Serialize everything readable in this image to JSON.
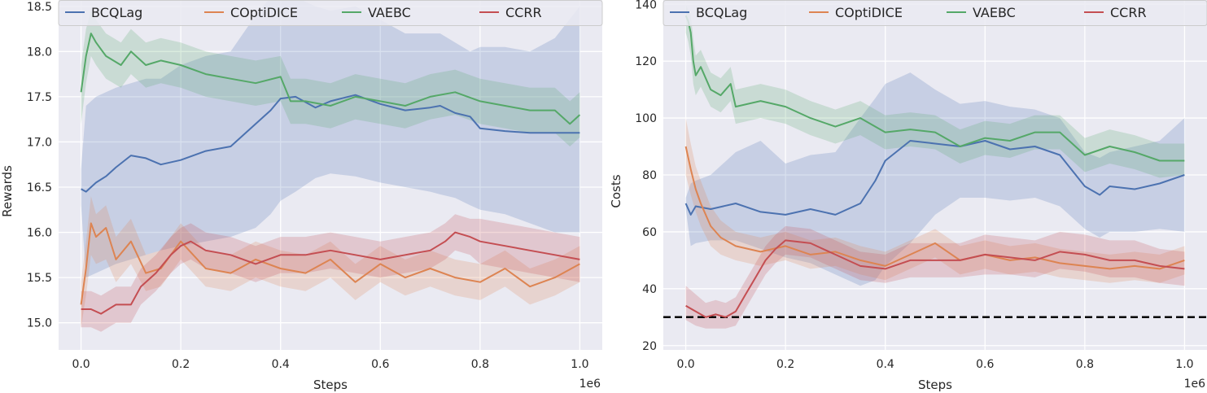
{
  "chart_data": [
    {
      "type": "line",
      "xlabel": "Steps",
      "ylabel": "Rewards",
      "x_multiplier_label": "1e6",
      "xlim": [
        -0.045,
        1.045
      ],
      "ylim": [
        14.7,
        18.57
      ],
      "xticks": [
        0.0,
        0.2,
        0.4,
        0.6,
        0.8,
        1.0
      ],
      "xtick_labels": [
        "0.0",
        "0.2",
        "0.4",
        "0.6",
        "0.8",
        "1.0"
      ],
      "yticks": [
        15.0,
        15.5,
        16.0,
        16.5,
        17.0,
        17.5,
        18.0,
        18.5
      ],
      "ytick_labels": [
        "15.0",
        "15.5",
        "16.0",
        "16.5",
        "17.0",
        "17.5",
        "18.0",
        "18.5"
      ],
      "grid": true,
      "legend_position": "top",
      "series": [
        {
          "name": "BCQLag",
          "color": "#4c72b0",
          "x": [
            0.0,
            0.01,
            0.03,
            0.05,
            0.07,
            0.1,
            0.13,
            0.16,
            0.2,
            0.25,
            0.3,
            0.35,
            0.38,
            0.4,
            0.43,
            0.47,
            0.5,
            0.55,
            0.6,
            0.65,
            0.7,
            0.72,
            0.75,
            0.78,
            0.8,
            0.85,
            0.9,
            0.95,
            1.0
          ],
          "y": [
            16.48,
            16.45,
            16.55,
            16.62,
            16.72,
            16.85,
            16.82,
            16.75,
            16.8,
            16.9,
            16.95,
            17.2,
            17.35,
            17.48,
            17.5,
            17.38,
            17.45,
            17.52,
            17.42,
            17.35,
            17.38,
            17.4,
            17.32,
            17.28,
            17.15,
            17.12,
            17.1,
            17.1,
            17.1
          ],
          "lower": [
            16.3,
            15.5,
            15.55,
            15.6,
            15.65,
            15.7,
            15.75,
            15.8,
            15.85,
            15.9,
            15.95,
            16.05,
            16.2,
            16.35,
            16.45,
            16.6,
            16.65,
            16.62,
            16.55,
            16.5,
            16.45,
            16.42,
            16.38,
            16.3,
            16.25,
            16.2,
            16.1,
            16.0,
            16.0
          ],
          "upper": [
            16.7,
            17.4,
            17.5,
            17.55,
            17.6,
            17.65,
            17.7,
            17.7,
            17.85,
            17.95,
            18.0,
            18.4,
            18.6,
            18.6,
            18.6,
            18.5,
            18.45,
            18.5,
            18.35,
            18.2,
            18.2,
            18.2,
            18.1,
            18.0,
            18.05,
            18.05,
            18.0,
            18.15,
            18.5
          ]
        },
        {
          "name": "COptiDICE",
          "color": "#dd8452",
          "x": [
            0.0,
            0.01,
            0.02,
            0.03,
            0.05,
            0.07,
            0.1,
            0.13,
            0.16,
            0.2,
            0.25,
            0.3,
            0.35,
            0.4,
            0.45,
            0.5,
            0.55,
            0.6,
            0.65,
            0.7,
            0.75,
            0.8,
            0.85,
            0.9,
            0.95,
            1.0
          ],
          "y": [
            15.2,
            15.6,
            16.1,
            15.95,
            16.05,
            15.7,
            15.9,
            15.55,
            15.6,
            15.9,
            15.6,
            15.55,
            15.7,
            15.6,
            15.55,
            15.7,
            15.45,
            15.65,
            15.5,
            15.6,
            15.5,
            15.45,
            15.6,
            15.4,
            15.5,
            15.65
          ],
          "lower": [
            14.95,
            15.3,
            15.75,
            15.65,
            15.7,
            15.45,
            15.65,
            15.35,
            15.4,
            15.7,
            15.4,
            15.35,
            15.5,
            15.4,
            15.35,
            15.5,
            15.25,
            15.45,
            15.3,
            15.4,
            15.3,
            15.25,
            15.4,
            15.2,
            15.3,
            15.45
          ],
          "upper": [
            15.45,
            15.9,
            16.4,
            16.2,
            16.3,
            15.95,
            16.15,
            15.75,
            15.8,
            16.1,
            15.8,
            15.75,
            15.9,
            15.8,
            15.75,
            15.9,
            15.65,
            15.85,
            15.7,
            15.8,
            15.7,
            15.65,
            15.8,
            15.6,
            15.7,
            15.85
          ]
        },
        {
          "name": "VAEBC",
          "color": "#55a868",
          "x": [
            0.0,
            0.01,
            0.02,
            0.03,
            0.05,
            0.08,
            0.1,
            0.13,
            0.16,
            0.2,
            0.25,
            0.3,
            0.35,
            0.4,
            0.42,
            0.45,
            0.5,
            0.55,
            0.6,
            0.65,
            0.7,
            0.75,
            0.8,
            0.85,
            0.9,
            0.95,
            0.98,
            1.0
          ],
          "y": [
            17.55,
            17.95,
            18.2,
            18.1,
            17.95,
            17.85,
            18.0,
            17.85,
            17.9,
            17.85,
            17.75,
            17.7,
            17.65,
            17.72,
            17.45,
            17.45,
            17.4,
            17.5,
            17.45,
            17.4,
            17.5,
            17.55,
            17.45,
            17.4,
            17.35,
            17.35,
            17.2,
            17.3
          ],
          "lower": [
            17.2,
            17.65,
            17.95,
            17.85,
            17.7,
            17.6,
            17.75,
            17.6,
            17.65,
            17.6,
            17.5,
            17.45,
            17.4,
            17.45,
            17.2,
            17.2,
            17.15,
            17.25,
            17.2,
            17.15,
            17.25,
            17.3,
            17.2,
            17.15,
            17.1,
            17.1,
            16.95,
            17.05
          ],
          "upper": [
            17.85,
            18.25,
            18.45,
            18.35,
            18.2,
            18.1,
            18.25,
            18.1,
            18.15,
            18.1,
            18.0,
            17.95,
            17.9,
            17.95,
            17.7,
            17.7,
            17.65,
            17.75,
            17.7,
            17.65,
            17.75,
            17.8,
            17.7,
            17.65,
            17.6,
            17.6,
            17.45,
            17.55
          ]
        },
        {
          "name": "CCRR",
          "color": "#c44e52",
          "x": [
            0.0,
            0.02,
            0.04,
            0.07,
            0.1,
            0.12,
            0.15,
            0.18,
            0.2,
            0.22,
            0.25,
            0.3,
            0.35,
            0.4,
            0.45,
            0.5,
            0.55,
            0.6,
            0.65,
            0.7,
            0.73,
            0.75,
            0.78,
            0.8,
            0.85,
            0.9,
            0.95,
            1.0
          ],
          "y": [
            15.15,
            15.15,
            15.1,
            15.2,
            15.2,
            15.4,
            15.55,
            15.75,
            15.85,
            15.9,
            15.8,
            15.75,
            15.65,
            15.75,
            15.75,
            15.8,
            15.75,
            15.7,
            15.75,
            15.8,
            15.9,
            16.0,
            15.95,
            15.9,
            15.85,
            15.8,
            15.75,
            15.7
          ],
          "lower": [
            14.95,
            14.95,
            14.9,
            15.0,
            15.0,
            15.2,
            15.35,
            15.55,
            15.65,
            15.7,
            15.6,
            15.55,
            15.45,
            15.55,
            15.55,
            15.6,
            15.55,
            15.5,
            15.55,
            15.6,
            15.7,
            15.8,
            15.75,
            15.65,
            15.6,
            15.55,
            15.5,
            15.45
          ],
          "upper": [
            15.35,
            15.35,
            15.3,
            15.4,
            15.4,
            15.6,
            15.75,
            15.95,
            16.05,
            16.1,
            16.0,
            15.95,
            15.85,
            15.95,
            15.95,
            16.0,
            15.95,
            15.9,
            15.95,
            16.0,
            16.1,
            16.2,
            16.15,
            16.15,
            16.1,
            16.05,
            16.0,
            15.95
          ]
        }
      ]
    },
    {
      "type": "line",
      "xlabel": "Steps",
      "ylabel": "Costs",
      "x_multiplier_label": "1e6",
      "xlim": [
        -0.045,
        1.045
      ],
      "ylim": [
        18.5,
        141.5
      ],
      "xticks": [
        0.0,
        0.2,
        0.4,
        0.6,
        0.8,
        1.0
      ],
      "xtick_labels": [
        "0.0",
        "0.2",
        "0.4",
        "0.6",
        "0.8",
        "1.0"
      ],
      "yticks": [
        20,
        40,
        60,
        80,
        100,
        120,
        140
      ],
      "ytick_labels": [
        "20",
        "40",
        "60",
        "80",
        "100",
        "120",
        "140"
      ],
      "grid": true,
      "legend_position": "top",
      "threshold": {
        "y": 30,
        "color": "#000000",
        "style": "dashed"
      },
      "series": [
        {
          "name": "BCQLag",
          "color": "#4c72b0",
          "x": [
            0.0,
            0.01,
            0.02,
            0.05,
            0.1,
            0.15,
            0.2,
            0.25,
            0.3,
            0.35,
            0.38,
            0.4,
            0.45,
            0.5,
            0.55,
            0.6,
            0.65,
            0.7,
            0.75,
            0.8,
            0.83,
            0.85,
            0.9,
            0.95,
            1.0
          ],
          "y": [
            70,
            66,
            69,
            68,
            70,
            67,
            66,
            68,
            66,
            70,
            78,
            85,
            92,
            91,
            90,
            92,
            89,
            90,
            87,
            76,
            73,
            76,
            75,
            77,
            80
          ],
          "lower": [
            68,
            55,
            56,
            57,
            57,
            54,
            51,
            49,
            45,
            41,
            43,
            48,
            56,
            66,
            72,
            72,
            71,
            72,
            69,
            61,
            58,
            60,
            60,
            61,
            60
          ],
          "upper": [
            72,
            77,
            78,
            80,
            88,
            92,
            84,
            87,
            88,
            100,
            107,
            112,
            116,
            110,
            105,
            106,
            104,
            103,
            100,
            88,
            86,
            88,
            90,
            92,
            100
          ]
        },
        {
          "name": "COptiDICE",
          "color": "#dd8452",
          "x": [
            0.0,
            0.01,
            0.02,
            0.03,
            0.05,
            0.07,
            0.1,
            0.15,
            0.2,
            0.25,
            0.3,
            0.35,
            0.4,
            0.45,
            0.5,
            0.55,
            0.6,
            0.65,
            0.7,
            0.75,
            0.8,
            0.85,
            0.9,
            0.95,
            1.0
          ],
          "y": [
            90,
            82,
            75,
            70,
            62,
            58,
            55,
            53,
            55,
            52,
            53,
            50,
            48,
            52,
            56,
            50,
            52,
            50,
            51,
            49,
            48,
            47,
            48,
            47,
            50
          ],
          "lower": [
            80,
            73,
            67,
            62,
            55,
            52,
            50,
            48,
            50,
            47,
            48,
            45,
            43,
            47,
            51,
            45,
            47,
            45,
            46,
            44,
            43,
            42,
            43,
            42,
            45
          ],
          "upper": [
            100,
            91,
            83,
            78,
            69,
            64,
            60,
            58,
            60,
            57,
            58,
            55,
            53,
            57,
            61,
            55,
            57,
            55,
            56,
            54,
            53,
            52,
            53,
            52,
            55
          ]
        },
        {
          "name": "VAEBC",
          "color": "#55a868",
          "x": [
            0.0,
            0.005,
            0.01,
            0.015,
            0.02,
            0.03,
            0.05,
            0.07,
            0.09,
            0.1,
            0.15,
            0.2,
            0.25,
            0.3,
            0.35,
            0.4,
            0.45,
            0.5,
            0.55,
            0.6,
            0.65,
            0.7,
            0.75,
            0.8,
            0.85,
            0.9,
            0.95,
            1.0
          ],
          "y": [
            136,
            134,
            130,
            120,
            115,
            118,
            110,
            108,
            112,
            104,
            106,
            104,
            100,
            97,
            100,
            95,
            96,
            95,
            90,
            93,
            92,
            95,
            95,
            87,
            90,
            88,
            85,
            85
          ],
          "lower": [
            130,
            127,
            122,
            112,
            108,
            111,
            104,
            102,
            106,
            98,
            100,
            98,
            94,
            91,
            94,
            89,
            90,
            89,
            84,
            87,
            86,
            89,
            89,
            81,
            84,
            82,
            79,
            80
          ],
          "upper": [
            140,
            138,
            136,
            128,
            122,
            124,
            116,
            114,
            118,
            110,
            112,
            110,
            106,
            103,
            106,
            101,
            102,
            101,
            96,
            99,
            98,
            101,
            101,
            93,
            96,
            94,
            91,
            91
          ]
        },
        {
          "name": "CCRR",
          "color": "#c44e52",
          "x": [
            0.0,
            0.02,
            0.04,
            0.06,
            0.08,
            0.1,
            0.12,
            0.14,
            0.16,
            0.18,
            0.2,
            0.25,
            0.3,
            0.35,
            0.4,
            0.45,
            0.5,
            0.55,
            0.6,
            0.65,
            0.7,
            0.75,
            0.8,
            0.85,
            0.9,
            0.95,
            1.0
          ],
          "y": [
            34,
            32,
            30,
            31,
            30,
            32,
            38,
            44,
            50,
            54,
            57,
            56,
            52,
            48,
            47,
            50,
            50,
            50,
            52,
            51,
            50,
            53,
            52,
            50,
            50,
            48,
            47
          ],
          "lower": [
            29,
            27,
            26,
            26,
            26,
            27,
            33,
            39,
            45,
            49,
            52,
            51,
            47,
            43,
            42,
            44,
            44,
            44,
            45,
            45,
            44,
            47,
            46,
            44,
            44,
            42,
            41
          ],
          "upper": [
            41,
            38,
            35,
            36,
            35,
            37,
            43,
            49,
            55,
            59,
            62,
            61,
            57,
            53,
            52,
            56,
            56,
            56,
            59,
            58,
            57,
            60,
            59,
            57,
            57,
            54,
            53
          ]
        }
      ]
    }
  ]
}
